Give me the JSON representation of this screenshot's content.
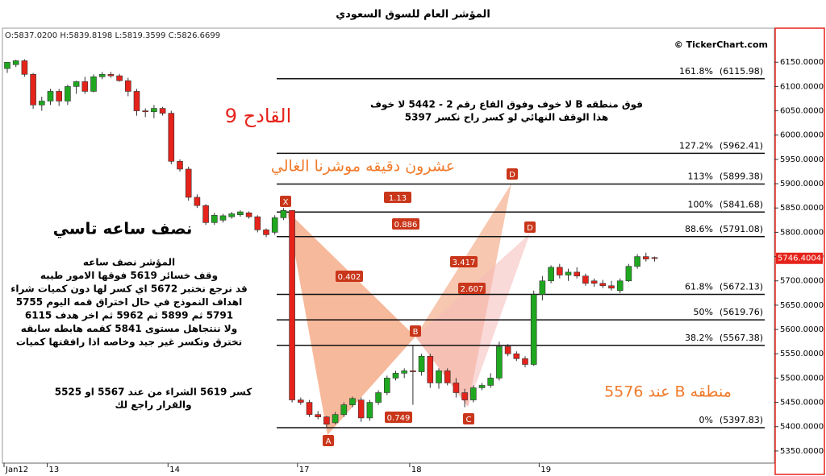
{
  "chart_data": {
    "type": "candlestick",
    "title": "المؤشر العام للسوق السعودي",
    "ohlc_info": "O:5837.0200  H:5839.8198  L:5819.3599  C:5826.6699",
    "watermark": "© TickerChart.com",
    "categories": [
      "Jan12",
      null,
      null,
      null,
      null,
      "13",
      null,
      null,
      null,
      null,
      null,
      null,
      null,
      null,
      null,
      null,
      null,
      null,
      null,
      "14",
      null,
      null,
      null,
      null,
      null,
      null,
      null,
      null,
      null,
      null,
      null,
      null,
      null,
      null,
      "17",
      null,
      null,
      null,
      null,
      null,
      null,
      null,
      null,
      null,
      null,
      null,
      null,
      "18",
      null,
      null,
      null,
      null,
      null,
      null,
      null,
      null,
      null,
      null,
      null,
      null,
      null,
      null,
      "19",
      null,
      null,
      null,
      null,
      null,
      null,
      null,
      null,
      null,
      null,
      null,
      null,
      null
    ],
    "open": [
      6137,
      6145,
      6153,
      6125,
      6062,
      6070,
      6090,
      6070,
      6100,
      6110,
      6090,
      6120,
      6125,
      6122,
      6112,
      6090,
      6050,
      6048,
      6055,
      6045,
      5946,
      5930,
      5872,
      5855,
      5820,
      5825,
      5832,
      5836,
      5840,
      5832,
      5805,
      5800,
      5830,
      5845,
      5455,
      5450,
      5425,
      5420,
      5408,
      5425,
      5445,
      5455,
      5418,
      5450,
      5470,
      5500,
      5510,
      5515,
      5513,
      5545,
      5490,
      5515,
      5490,
      5470,
      5455,
      5480,
      5485,
      5500,
      5565,
      5550,
      5540,
      5528,
      5672,
      5700,
      5728,
      5712,
      5718,
      5710,
      5700,
      5695,
      5690,
      5680,
      5700,
      5730,
      5750,
      5748
    ],
    "high": [
      6150,
      6155,
      6156,
      6128,
      6079,
      6095,
      6095,
      6104,
      6112,
      6120,
      6125,
      6130,
      6130,
      6126,
      6118,
      6095,
      6055,
      6062,
      6058,
      6050,
      5950,
      5935,
      5878,
      5858,
      5840,
      5838,
      5842,
      5845,
      5843,
      5835,
      5808,
      5835,
      5850,
      5845,
      5460,
      5455,
      5432,
      5422,
      5430,
      5450,
      5462,
      5460,
      5455,
      5475,
      5505,
      5515,
      5520,
      5567,
      5550,
      5550,
      5520,
      5520,
      5500,
      5478,
      5485,
      5490,
      5510,
      5575,
      5570,
      5555,
      5545,
      5680,
      5710,
      5732,
      5735,
      5725,
      5728,
      5715,
      5705,
      5702,
      5700,
      5705,
      5735,
      5755,
      5758,
      5750
    ],
    "low": [
      6128,
      6140,
      6120,
      6054,
      6050,
      6062,
      6060,
      6062,
      6085,
      6085,
      6088,
      6115,
      6118,
      6110,
      6080,
      6040,
      6037,
      6035,
      6040,
      5940,
      5925,
      5865,
      5850,
      5815,
      5815,
      5820,
      5828,
      5832,
      5828,
      5800,
      5790,
      5795,
      5825,
      5450,
      5445,
      5420,
      5415,
      5398,
      5405,
      5420,
      5440,
      5410,
      5412,
      5445,
      5465,
      5495,
      5500,
      5445,
      5505,
      5480,
      5478,
      5485,
      5460,
      5440,
      5450,
      5475,
      5480,
      5495,
      5545,
      5535,
      5522,
      5525,
      5660,
      5695,
      5705,
      5700,
      5705,
      5690,
      5688,
      5685,
      5680,
      5675,
      5698,
      5725,
      5740,
      5740
    ],
    "close": [
      6150,
      6153,
      6125,
      6062,
      6070,
      6090,
      6070,
      6100,
      6110,
      6090,
      6120,
      6125,
      6122,
      6112,
      6090,
      6050,
      6048,
      6055,
      6045,
      5946,
      5930,
      5872,
      5855,
      5820,
      5835,
      5834,
      5838,
      5842,
      5832,
      5805,
      5795,
      5830,
      5845,
      5455,
      5450,
      5425,
      5420,
      5405,
      5425,
      5445,
      5458,
      5418,
      5450,
      5470,
      5500,
      5510,
      5515,
      5513,
      5545,
      5490,
      5515,
      5490,
      5470,
      5455,
      5480,
      5485,
      5500,
      5565,
      5550,
      5540,
      5528,
      5672,
      5700,
      5728,
      5712,
      5718,
      5710,
      5695,
      5695,
      5690,
      5685,
      5700,
      5730,
      5750,
      5745,
      5746
    ],
    "up_color": "#1fa81f",
    "down_color": "#e5231b",
    "last_price": 5746.4004,
    "ylim": [
      5325,
      6220
    ],
    "yticks": [
      {
        "value": 5350,
        "label": "5350.0000"
      },
      {
        "value": 5400,
        "label": "5400.0000"
      },
      {
        "value": 5450,
        "label": "5450.0000"
      },
      {
        "value": 5500,
        "label": "5500.0000"
      },
      {
        "value": 5550,
        "label": "5550.0000"
      },
      {
        "value": 5600,
        "label": "5600.0000"
      },
      {
        "value": 5650,
        "label": "5650.0000"
      },
      {
        "value": 5700,
        "label": "5700.0000"
      },
      {
        "value": 5750,
        "label": "5750.0000"
      },
      {
        "value": 5800,
        "label": "5800.0000"
      },
      {
        "value": 5850,
        "label": "5850.0000"
      },
      {
        "value": 5900,
        "label": "5900.0000"
      },
      {
        "value": 5950,
        "label": "5950.0000"
      },
      {
        "value": 6000,
        "label": "6000.0000"
      },
      {
        "value": 6050,
        "label": "6050.0000"
      },
      {
        "value": 6100,
        "label": "6100.0000"
      },
      {
        "value": 6150,
        "label": "6150.0000"
      }
    ],
    "fib_levels": {
      "labels": [
        "161.8%",
        "127.2%",
        "113%",
        "100%",
        "88.6%",
        "61.8%",
        "50%",
        "38.2%",
        "0%"
      ],
      "values": [
        6115.98,
        5962.41,
        5899.38,
        5841.68,
        5791.08,
        5672.13,
        5619.76,
        5567.38,
        5397.83
      ],
      "value_labels": [
        "(6115.98)",
        "(5962.41)",
        "(5899.38)",
        "(5841.68)",
        "(5791.08)",
        "(5672.13)",
        "(5619.76)",
        "(5567.38)",
        "(5397.83)"
      ]
    },
    "pattern_points": [
      "X",
      "A",
      "B",
      "C",
      "D",
      "D"
    ],
    "pattern_ratios": [
      0.402,
      0.749,
      3.417,
      2.607,
      1.13,
      0.886
    ],
    "annotations": {
      "trigger": "القادح 9",
      "timeframe": "عشرون دقيقه موشرنا الغالي",
      "half_hour": "نصف ساعه تاسي",
      "plan": [
        "المؤشر نصف ساعه",
        "وقف خسائر 5619 فوقها الامور طيبه",
        "قد نرجع نختبر 5672 اي كسر لها دون كميات شراء",
        "اهداف النموذج في حال اختراق قمه اليوم 5755",
        "5791 ثم 5899 ثم 5962 ثم اخر هدف 6115",
        "ولا ننتجاهل مستوى 5841 كقمه هابطه سابقه",
        "تخترق وتكسر غير جيد وخاصه اذا رافقتها كميات"
      ],
      "break_note": [
        "كسر 5619 الشراء من عند 5567 او 5525",
        "والقرار راجع لك"
      ],
      "stop_note": [
        "فوق  منطقه B لا خوف وفوق القاع رقم 2 - 5442 لا خوف",
        "هذا الوقف النهائي لو كسر راح نكسر 5397"
      ],
      "b_zone": "منطقه B عند 5576"
    }
  }
}
